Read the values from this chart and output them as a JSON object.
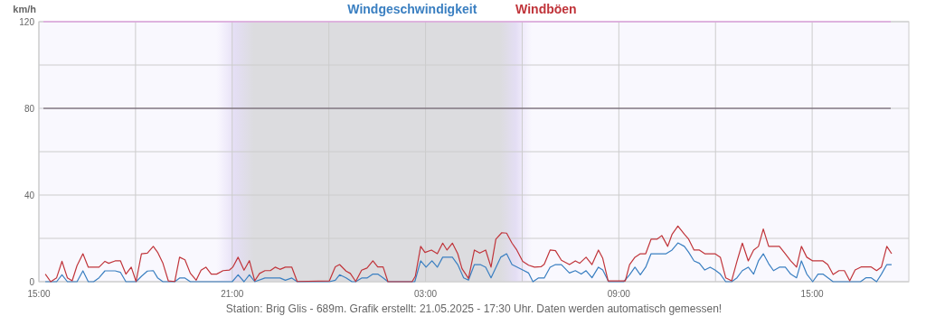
{
  "chart_data": {
    "type": "line",
    "ylabel": "km/h",
    "legend": "top",
    "grid": true,
    "marker": "none",
    "line_style": "solid",
    "xlim": [
      "2025-05-20T15:00",
      "2025-05-21T18:00"
    ],
    "ylim": [
      0,
      120
    ],
    "xticks": [
      {
        "value": "2025-05-20T15:00",
        "label": "15:00"
      },
      {
        "value": "2025-05-20T18:00",
        "label": null
      },
      {
        "value": "2025-05-20T21:00",
        "label": "21:00"
      },
      {
        "value": "2025-05-21T00:00",
        "label": null
      },
      {
        "value": "2025-05-21T03:00",
        "label": "03:00"
      },
      {
        "value": "2025-05-21T06:00",
        "label": null
      },
      {
        "value": "2025-05-21T09:00",
        "label": "09:00"
      },
      {
        "value": "2025-05-21T12:00",
        "label": null
      },
      {
        "value": "2025-05-21T15:00",
        "label": "15:00"
      }
    ],
    "yticks": [
      0,
      {
        "value": 20,
        "label": null
      },
      40,
      {
        "value": 60,
        "label": null
      },
      80,
      {
        "value": 100,
        "label": null
      },
      120
    ],
    "bands": [
      {
        "axis": "x",
        "from": "2025-05-20T20:30",
        "to": "2025-05-21T06:18",
        "color": "#dcdcdf"
      }
    ],
    "ref_lines": [
      {
        "axis": "y",
        "value": 80,
        "color": "#5a4a5a"
      },
      {
        "axis": "y",
        "value": 120,
        "color": "#e48ee4"
      }
    ],
    "annotations": [
      "Station: Brig Glis - 689m. Grafik erstellt: 21.05.2025 - 17:30 Uhr. Daten werden automatisch gemessen!"
    ],
    "series": [
      {
        "name": "Windgeschwindigkeit",
        "color": "#3a7fc1",
        "x": [
          "2025-05-20T15:12",
          "2025-05-20T15:33",
          "2025-05-20T15:43",
          "2025-05-20T15:53",
          "2025-05-20T16:11",
          "2025-05-20T16:22",
          "2025-05-20T16:32",
          "2025-05-20T16:42",
          "2025-05-20T16:52",
          "2025-05-20T17:03",
          "2025-05-20T17:22",
          "2025-05-20T17:32",
          "2025-05-20T17:42",
          "2025-05-20T18:01",
          "2025-05-20T18:11",
          "2025-05-20T18:22",
          "2025-05-20T18:33",
          "2025-05-20T18:41",
          "2025-05-20T18:51",
          "2025-05-20T19:13",
          "2025-05-20T19:22",
          "2025-05-20T19:32",
          "2025-05-20T19:42",
          "2025-05-20T21:00",
          "2025-05-20T21:11",
          "2025-05-20T21:22",
          "2025-05-20T21:32",
          "2025-05-20T21:42",
          "2025-05-20T22:01",
          "2025-05-20T22:29",
          "2025-05-20T22:39",
          "2025-05-20T22:51",
          "2025-05-20T23:01",
          "2025-05-21T00:01",
          "2025-05-21T00:12",
          "2025-05-21T00:20",
          "2025-05-21T00:32",
          "2025-05-21T00:43",
          "2025-05-21T00:50",
          "2025-05-21T01:01",
          "2025-05-21T01:11",
          "2025-05-21T01:22",
          "2025-05-21T01:31",
          "2025-05-21T01:41",
          "2025-05-21T01:50",
          "2025-05-21T02:40",
          "2025-05-21T02:51",
          "2025-05-21T03:01",
          "2025-05-21T03:12",
          "2025-05-21T03:22",
          "2025-05-21T03:32",
          "2025-05-21T03:50",
          "2025-05-21T04:00",
          "2025-05-21T04:11",
          "2025-05-21T04:20",
          "2025-05-21T04:31",
          "2025-05-21T04:42",
          "2025-05-21T04:52",
          "2025-05-21T05:02",
          "2025-05-21T05:20",
          "2025-05-21T05:31",
          "2025-05-21T05:41",
          "2025-05-21T06:01",
          "2025-05-21T06:12",
          "2025-05-21T06:20",
          "2025-05-21T06:30",
          "2025-05-21T06:41",
          "2025-05-21T06:52",
          "2025-05-21T07:02",
          "2025-05-21T07:13",
          "2025-05-21T07:28",
          "2025-05-21T07:39",
          "2025-05-21T07:50",
          "2025-05-21T07:59",
          "2025-05-21T08:10",
          "2025-05-21T08:22",
          "2025-05-21T08:30",
          "2025-05-21T08:41",
          "2025-05-21T09:09",
          "2025-05-21T09:20",
          "2025-05-21T09:30",
          "2025-05-21T09:40",
          "2025-05-21T09:50",
          "2025-05-21T10:00",
          "2025-05-21T10:28",
          "2025-05-21T10:39",
          "2025-05-21T10:50",
          "2025-05-21T11:02",
          "2025-05-21T11:10",
          "2025-05-21T11:20",
          "2025-05-21T11:30",
          "2025-05-21T11:40",
          "2025-05-21T11:50",
          "2025-05-21T11:59",
          "2025-05-21T12:09",
          "2025-05-21T12:19",
          "2025-05-21T12:30",
          "2025-05-21T12:40",
          "2025-05-21T12:50",
          "2025-05-21T13:01",
          "2025-05-21T13:11",
          "2025-05-21T13:20",
          "2025-05-21T13:29",
          "2025-05-21T13:39",
          "2025-05-21T13:48",
          "2025-05-21T13:59",
          "2025-05-21T14:10",
          "2025-05-21T14:20",
          "2025-05-21T14:31",
          "2025-05-21T14:40",
          "2025-05-21T14:50",
          "2025-05-21T15:01",
          "2025-05-21T15:11",
          "2025-05-21T15:20",
          "2025-05-21T15:39",
          "2025-05-21T16:30",
          "2025-05-21T16:40",
          "2025-05-21T16:50",
          "2025-05-21T17:00",
          "2025-05-21T17:09",
          "2025-05-21T17:19",
          "2025-05-21T17:28"
        ],
        "values": [
          0,
          0,
          3.2,
          0,
          0,
          5,
          0,
          0,
          1.8,
          5,
          5,
          4.3,
          0,
          0,
          2.5,
          4.9,
          5.1,
          1.8,
          0,
          0,
          1.7,
          1.7,
          0,
          0,
          3.2,
          0,
          3.2,
          0,
          1.7,
          1.7,
          0.7,
          1.7,
          0,
          0,
          0.7,
          3.2,
          1.8,
          0,
          0,
          1.7,
          1.7,
          3.5,
          3.5,
          1.8,
          0,
          0,
          9.6,
          6.7,
          9.6,
          6.7,
          11.3,
          11.3,
          7.9,
          1.8,
          0.7,
          7.9,
          7.9,
          6.7,
          1.8,
          11.3,
          12.9,
          7.9,
          5.4,
          4,
          0,
          1.7,
          1.7,
          6.7,
          7.9,
          7.9,
          4,
          5.1,
          3.5,
          5.1,
          1.8,
          6.7,
          5.4,
          0,
          0,
          3.2,
          6.7,
          3.2,
          6.7,
          12.9,
          12.9,
          14.6,
          17.9,
          16.3,
          13.6,
          9.6,
          8.5,
          5.4,
          6.7,
          5.4,
          3.5,
          0,
          0,
          1.8,
          5.1,
          6.7,
          3.5,
          9.6,
          12.9,
          8.3,
          5.1,
          6.7,
          6.7,
          3.5,
          1.8,
          9.6,
          3.5,
          0,
          3.5,
          3.5,
          0,
          0,
          1.8,
          1.8,
          0,
          3.5,
          7.9,
          7.9
        ]
      },
      {
        "name": "Windböen",
        "color": "#c0343a",
        "x": [
          "2025-05-20T15:12",
          "2025-05-20T15:22",
          "2025-05-20T15:33",
          "2025-05-20T15:43",
          "2025-05-20T15:53",
          "2025-05-20T16:02",
          "2025-05-20T16:11",
          "2025-05-20T16:22",
          "2025-05-20T16:32",
          "2025-05-20T16:52",
          "2025-05-20T17:03",
          "2025-05-20T17:10",
          "2025-05-20T17:22",
          "2025-05-20T17:32",
          "2025-05-20T17:42",
          "2025-05-20T17:52",
          "2025-05-20T18:01",
          "2025-05-20T18:11",
          "2025-05-20T18:22",
          "2025-05-20T18:33",
          "2025-05-20T18:41",
          "2025-05-20T18:51",
          "2025-05-20T19:01",
          "2025-05-20T19:13",
          "2025-05-20T19:22",
          "2025-05-20T19:32",
          "2025-05-20T19:42",
          "2025-05-20T19:53",
          "2025-05-20T20:02",
          "2025-05-20T20:11",
          "2025-05-20T20:21",
          "2025-05-20T20:31",
          "2025-05-20T20:43",
          "2025-05-20T20:55",
          "2025-05-20T21:01",
          "2025-05-20T21:11",
          "2025-05-20T21:22",
          "2025-05-20T21:32",
          "2025-05-20T21:42",
          "2025-05-20T21:51",
          "2025-05-20T22:01",
          "2025-05-20T22:11",
          "2025-05-20T22:20",
          "2025-05-20T22:29",
          "2025-05-20T22:39",
          "2025-05-20T22:51",
          "2025-05-20T23:01",
          "2025-05-21T00:01",
          "2025-05-21T00:12",
          "2025-05-21T00:20",
          "2025-05-21T00:32",
          "2025-05-21T00:40",
          "2025-05-21T00:50",
          "2025-05-21T01:01",
          "2025-05-21T01:11",
          "2025-05-21T01:22",
          "2025-05-21T01:31",
          "2025-05-21T01:41",
          "2025-05-21T01:50",
          "2025-05-21T02:35",
          "2025-05-21T02:41",
          "2025-05-21T02:51",
          "2025-05-21T02:59",
          "2025-05-21T03:11",
          "2025-05-21T03:22",
          "2025-05-21T03:32",
          "2025-05-21T03:40",
          "2025-05-21T03:50",
          "2025-05-21T04:00",
          "2025-05-21T04:08",
          "2025-05-21T04:20",
          "2025-05-21T04:31",
          "2025-05-21T04:41",
          "2025-05-21T04:52",
          "2025-05-21T05:02",
          "2025-05-21T05:11",
          "2025-05-21T05:22",
          "2025-05-21T05:31",
          "2025-05-21T05:41",
          "2025-05-21T05:50",
          "2025-05-21T06:01",
          "2025-05-21T06:12",
          "2025-05-21T06:23",
          "2025-05-21T06:35",
          "2025-05-21T06:41",
          "2025-05-21T06:52",
          "2025-05-21T07:02",
          "2025-05-21T07:13",
          "2025-05-21T07:28",
          "2025-05-21T07:39",
          "2025-05-21T07:47",
          "2025-05-21T07:59",
          "2025-05-21T08:10",
          "2025-05-21T08:22",
          "2025-05-21T08:30",
          "2025-05-21T08:40",
          "2025-05-21T09:12",
          "2025-05-21T09:20",
          "2025-05-21T09:30",
          "2025-05-21T09:40",
          "2025-05-21T09:50",
          "2025-05-21T10:00",
          "2025-05-21T10:11",
          "2025-05-21T10:20",
          "2025-05-21T10:31",
          "2025-05-21T10:39",
          "2025-05-21T10:50",
          "2025-05-21T11:02",
          "2025-05-21T11:10",
          "2025-05-21T11:20",
          "2025-05-21T11:30",
          "2025-05-21T11:40",
          "2025-05-21T11:59",
          "2025-05-21T12:09",
          "2025-05-21T12:19",
          "2025-05-21T12:30",
          "2025-05-21T12:40",
          "2025-05-21T12:50",
          "2025-05-21T13:01",
          "2025-05-21T13:11",
          "2025-05-21T13:20",
          "2025-05-21T13:29",
          "2025-05-21T13:39",
          "2025-05-21T13:59",
          "2025-05-21T14:10",
          "2025-05-21T14:20",
          "2025-05-21T14:31",
          "2025-05-21T14:40",
          "2025-05-21T14:50",
          "2025-05-21T15:01",
          "2025-05-21T15:20",
          "2025-05-21T15:29",
          "2025-05-21T15:39",
          "2025-05-21T15:50",
          "2025-05-21T16:00",
          "2025-05-21T16:10",
          "2025-05-21T16:20",
          "2025-05-21T16:31",
          "2025-05-21T16:50",
          "2025-05-21T17:00",
          "2025-05-21T17:09",
          "2025-05-21T17:19",
          "2025-05-21T17:28"
        ],
        "values": [
          3.5,
          0,
          1.8,
          9.4,
          1.8,
          0.4,
          7.4,
          12.9,
          6.7,
          6.7,
          9.4,
          8.5,
          9.6,
          9.6,
          3.5,
          6.7,
          0.1,
          12.9,
          13.2,
          16.3,
          13.6,
          8.5,
          0.4,
          0.1,
          11.3,
          10.1,
          3.9,
          0.7,
          5.3,
          6.7,
          3.5,
          3.5,
          5.1,
          5.4,
          6.7,
          11.3,
          5.3,
          9.7,
          0.4,
          3.8,
          5.1,
          5.1,
          6.7,
          5.7,
          6.7,
          6.7,
          0.1,
          0.4,
          6.9,
          7.9,
          4.9,
          3.8,
          0.1,
          5.3,
          6.3,
          9.6,
          6.8,
          6.8,
          0,
          0,
          2.5,
          16.3,
          13.5,
          14.6,
          12.9,
          17.8,
          14.6,
          17.8,
          12.9,
          6,
          1.5,
          14.6,
          13.2,
          14.6,
          6.7,
          19.6,
          22.6,
          22.4,
          17.8,
          14.6,
          9.4,
          7.6,
          6.7,
          6.9,
          8,
          14.6,
          14.3,
          9.9,
          7.9,
          9.6,
          8.5,
          11.3,
          7.9,
          14.6,
          10.8,
          0.4,
          0.4,
          7.9,
          11.3,
          12.9,
          12.9,
          19.6,
          19.6,
          21.3,
          16.3,
          21.8,
          25.7,
          21.9,
          19.6,
          14.6,
          14.6,
          12.9,
          12.9,
          11.3,
          1.8,
          0.4,
          9.4,
          17.8,
          9.6,
          14.6,
          16.3,
          24.3,
          16.3,
          16.3,
          12.9,
          9.6,
          6.7,
          16.3,
          11.3,
          9.6,
          9.6,
          7.9,
          3.3,
          5.1,
          5.1,
          0.4,
          5.4,
          6.8,
          6.8,
          5.1,
          6.8,
          16.3,
          12.9
        ]
      }
    ]
  }
}
